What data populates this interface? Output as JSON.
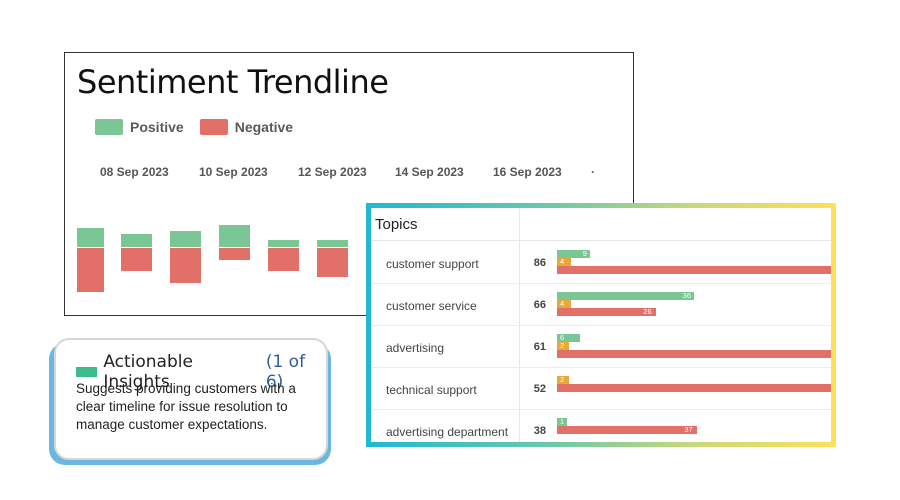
{
  "trend": {
    "title": "Sentiment Trendline",
    "legend": [
      {
        "label": "Positive",
        "color": "#7ac795"
      },
      {
        "label": "Negative",
        "color": "#e37068"
      }
    ],
    "dates": [
      "08 Sep 2023",
      "10 Sep 2023",
      "12 Sep 2023",
      "14 Sep 2023",
      "16 Sep 2023"
    ],
    "trailing_mark": "·"
  },
  "insights": {
    "title": "Actionable Insights",
    "count": "(1 of 6)",
    "text": "Suggests providing customers with a clear timeline for issue resolution to manage customer expectations."
  },
  "topics": {
    "title": "Topics",
    "rows": [
      {
        "label": "customer support",
        "total": "86",
        "positive": "9",
        "neutral": "4",
        "negative": "",
        "pos_frac": 0.12,
        "neu_frac": 0.05,
        "neg_frac": 1.0
      },
      {
        "label": "customer service",
        "total": "66",
        "positive": "36",
        "neutral": "4",
        "negative": "26",
        "pos_frac": 0.5,
        "neu_frac": 0.05,
        "neg_frac": 0.36
      },
      {
        "label": "advertising",
        "total": "61",
        "positive": "6",
        "neutral": "2",
        "negative": "",
        "pos_frac": 0.083,
        "neu_frac": 0.03,
        "neg_frac": 1.0
      },
      {
        "label": "technical support",
        "total": "52",
        "positive": "",
        "neutral": "2",
        "negative": "",
        "pos_frac": 0,
        "neu_frac": 0.03,
        "neg_frac": 1.0
      },
      {
        "label": "advertising department",
        "total": "38",
        "positive": "1",
        "neutral": "",
        "negative": "37",
        "pos_frac": 0.022,
        "neu_frac": 0,
        "neg_frac": 0.51
      }
    ]
  },
  "colors": {
    "positive": "#7ac795",
    "negative": "#e37068",
    "neutral": "#e9a93a",
    "insight_badge": "#3dbb8a"
  }
}
